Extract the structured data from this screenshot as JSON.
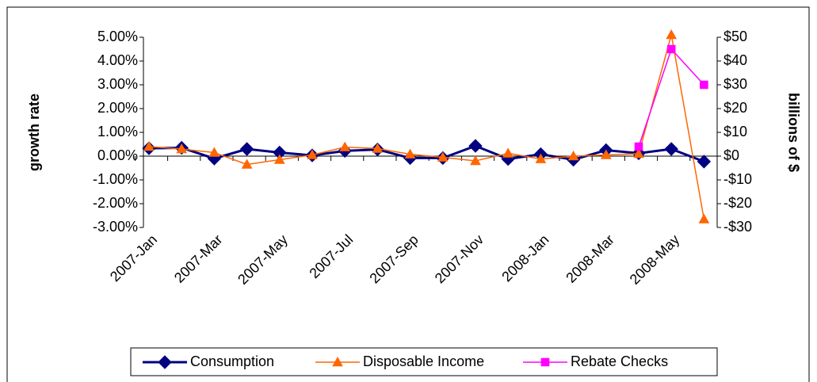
{
  "chart_data": {
    "type": "line",
    "y_label": "growth rate",
    "y2_label": "billions of $",
    "categories": [
      "2007-Jan",
      null,
      "2007-Mar",
      null,
      "2007-May",
      null,
      "2007-Jul",
      null,
      "2007-Sep",
      null,
      "2007-Nov",
      null,
      "2008-Jan",
      null,
      "2008-Mar",
      null,
      "2008-May",
      null
    ],
    "series": [
      {
        "name": "Consumption",
        "color": "#000080",
        "marker": "diamond",
        "values": [
          0.33,
          0.35,
          -0.1,
          0.3,
          0.15,
          0.03,
          0.22,
          0.28,
          -0.08,
          -0.08,
          0.43,
          -0.12,
          0.08,
          -0.15,
          0.25,
          0.12,
          0.3,
          -0.23
        ]
      },
      {
        "name": "Disposable Income",
        "color": "#FF6600",
        "marker": "triangle",
        "values": [
          0.4,
          0.3,
          0.15,
          -0.35,
          -0.15,
          0.05,
          0.38,
          0.32,
          0.08,
          -0.05,
          -0.2,
          0.12,
          -0.12,
          0.0,
          0.05,
          0.1,
          5.1,
          -2.65
        ]
      },
      {
        "name": "Rebate Checks",
        "color": "#FF00FF",
        "marker": "square",
        "axis": "y2",
        "values": [
          null,
          null,
          null,
          null,
          null,
          null,
          null,
          null,
          null,
          null,
          null,
          null,
          null,
          null,
          null,
          4,
          45,
          30
        ]
      }
    ],
    "ylim": [
      -3,
      5
    ],
    "yticks": [
      {
        "value": -3,
        "label": "-3.00%"
      },
      {
        "value": -2,
        "label": "-2.00%"
      },
      {
        "value": -1,
        "label": "-1.00%"
      },
      {
        "value": 0,
        "label": "0.00%"
      },
      {
        "value": 1,
        "label": "1.00%"
      },
      {
        "value": 2,
        "label": "2.00%"
      },
      {
        "value": 3,
        "label": "3.00%"
      },
      {
        "value": 4,
        "label": "4.00%"
      },
      {
        "value": 5,
        "label": "5.00%"
      }
    ],
    "y2lim": [
      -30,
      50
    ],
    "y2ticks": [
      {
        "value": -30,
        "label": "-$30"
      },
      {
        "value": -20,
        "label": "-$20"
      },
      {
        "value": -10,
        "label": "-$10"
      },
      {
        "value": 0,
        "label": "$0"
      },
      {
        "value": 10,
        "label": "$10"
      },
      {
        "value": 20,
        "label": "$20"
      },
      {
        "value": 30,
        "label": "$30"
      },
      {
        "value": 40,
        "label": "$40"
      },
      {
        "value": 50,
        "label": "$50"
      }
    ],
    "grid": false,
    "legend": "bottom"
  }
}
